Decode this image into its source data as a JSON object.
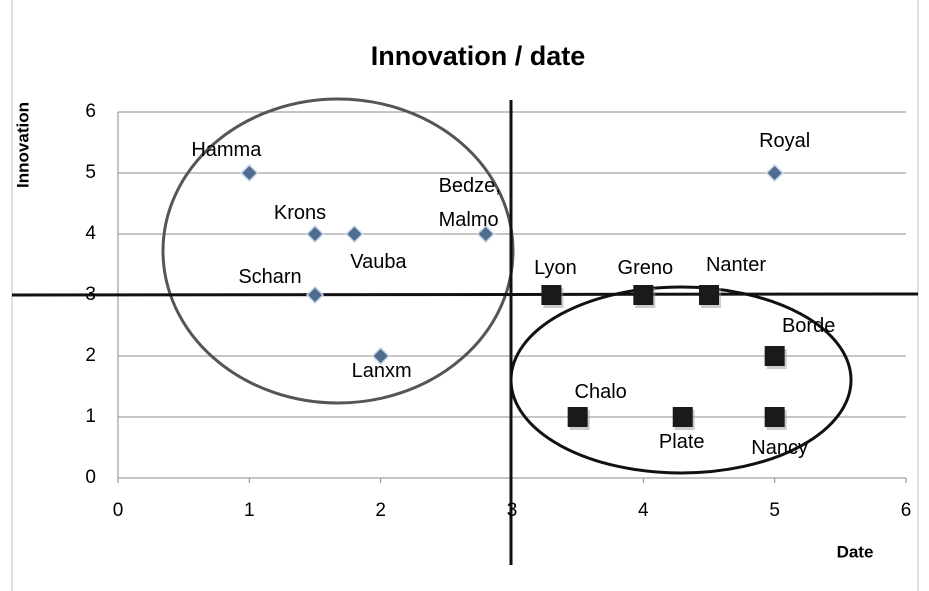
{
  "chart_data": {
    "type": "scatter",
    "title": "Innovation / date",
    "xlabel": "Date",
    "ylabel": "Innovation",
    "xlim": [
      0,
      6
    ],
    "xticks": [
      0,
      1,
      2,
      3,
      4,
      5,
      6
    ],
    "ylim": [
      0,
      6
    ],
    "yticks": [
      0,
      1,
      2,
      3,
      4,
      5,
      6
    ],
    "grid": true,
    "series": [
      {
        "marker": "diamond",
        "color": "#4f6d8f",
        "x": [
          1,
          1.5,
          1.8,
          2.8,
          1.5,
          2,
          5
        ],
        "values": [
          5,
          4,
          4,
          4,
          3,
          2,
          5
        ],
        "labels": [
          "Hamma",
          "Krons",
          "Vauba",
          "Bedze,\nMalmo",
          "Scharn",
          "Lanxm",
          "Royal"
        ]
      },
      {
        "marker": "square",
        "color": "#1a1a1a",
        "x": [
          3.3,
          4,
          4.5,
          5,
          3.5,
          4.3,
          5
        ],
        "values": [
          3,
          3,
          3,
          2,
          1,
          1,
          1
        ],
        "labels": [
          "Lyon",
          "Greno",
          "Nanter",
          "Borde",
          "Chalo",
          "Plate",
          "Nancy"
        ]
      }
    ]
  }
}
